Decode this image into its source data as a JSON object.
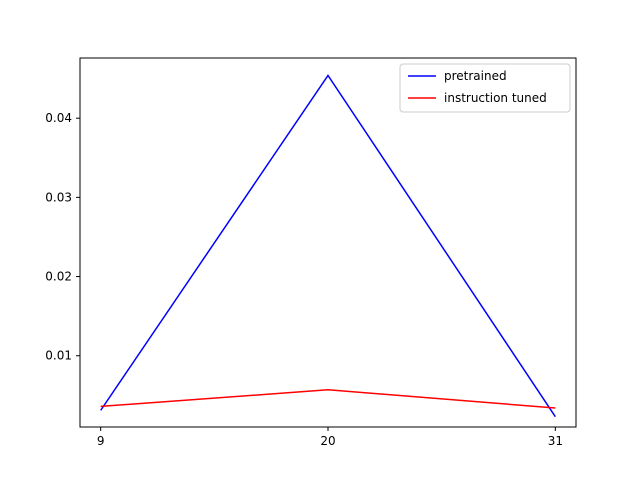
{
  "chart_data": {
    "type": "line",
    "x": [
      9,
      20,
      31
    ],
    "x_ticks": [
      "9",
      "20",
      "31"
    ],
    "y_ticks": [
      0.01,
      0.02,
      0.03,
      0.04
    ],
    "y_tick_labels": [
      "0.01",
      "0.02",
      "0.03",
      "0.04"
    ],
    "ylim": [
      0.001,
      0.0476
    ],
    "xlim": [
      8.0,
      32.0
    ],
    "grid": false,
    "legend_position": "upper right",
    "series": [
      {
        "name": "pretrained",
        "color": "#0000ff",
        "values": [
          0.0031,
          0.0454,
          0.0023
        ]
      },
      {
        "name": "instruction tuned",
        "color": "#ff0000",
        "values": [
          0.0036,
          0.0057,
          0.0034
        ]
      }
    ]
  }
}
